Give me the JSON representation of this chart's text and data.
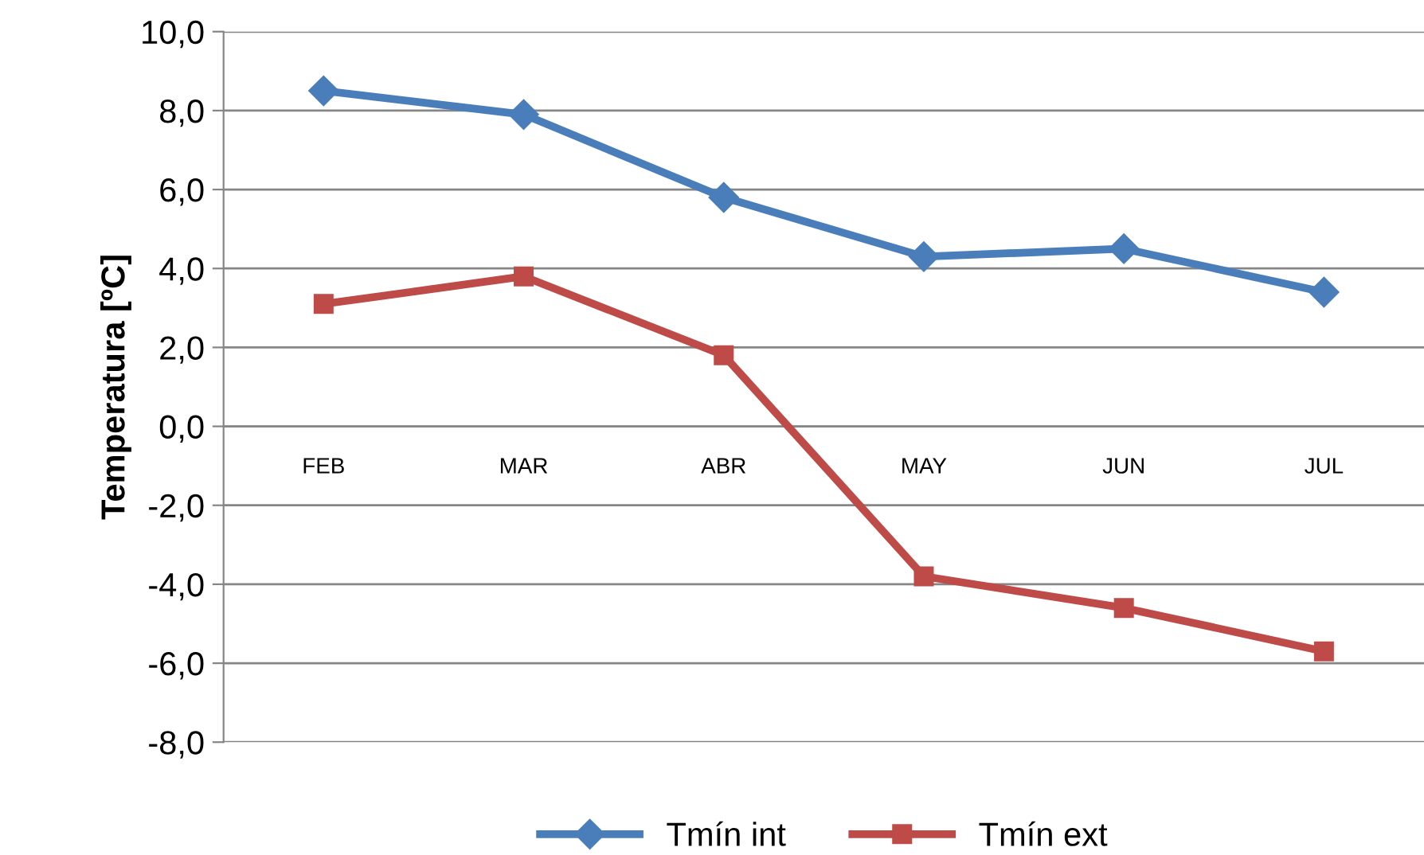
{
  "chart_data": {
    "type": "line",
    "ylabel": "Temperatura [ºC]",
    "categories": [
      "FEB",
      "MAR",
      "ABR",
      "MAY",
      "JUN",
      "JUL"
    ],
    "series": [
      {
        "name": "Tmín int",
        "color": "#4a7ebb",
        "marker": "diamond",
        "values": [
          8.5,
          7.9,
          5.8,
          4.3,
          4.5,
          3.4
        ]
      },
      {
        "name": "Tmín ext",
        "color": "#be4b48",
        "marker": "square",
        "values": [
          3.1,
          3.8,
          1.8,
          -3.8,
          -4.6,
          -5.7
        ]
      }
    ],
    "ylim": [
      -8,
      10
    ],
    "yticks": [
      {
        "value": -8,
        "label": "-8,0"
      },
      {
        "value": -6,
        "label": "-6,0"
      },
      {
        "value": -4,
        "label": "-4,0"
      },
      {
        "value": -2,
        "label": "-2,0"
      },
      {
        "value": 0,
        "label": "0,0"
      },
      {
        "value": 2,
        "label": "2,0"
      },
      {
        "value": 4,
        "label": "4,0"
      },
      {
        "value": 6,
        "label": "6,0"
      },
      {
        "value": 8,
        "label": "8,0"
      },
      {
        "value": 10,
        "label": "10,0"
      }
    ],
    "grid": "y",
    "legend": "bottom",
    "line_style": "solid"
  }
}
